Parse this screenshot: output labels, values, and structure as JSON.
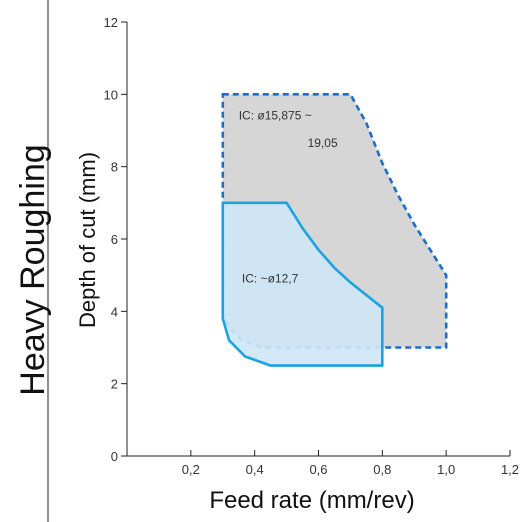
{
  "chart_data": {
    "type": "area",
    "side_title": "Heavy Roughing",
    "xlabel": "Feed rate (mm/rev)",
    "ylabel": "Depth of cut (mm)",
    "xlim": [
      0,
      1.2
    ],
    "ylim": [
      0,
      12
    ],
    "x_ticks": [
      {
        "value": 0.2,
        "label": "0,2"
      },
      {
        "value": 0.4,
        "label": "0,4"
      },
      {
        "value": 0.6,
        "label": "0,6"
      },
      {
        "value": 0.8,
        "label": "0,8"
      },
      {
        "value": 1.0,
        "label": "1,0"
      },
      {
        "value": 1.2,
        "label": "1,2"
      }
    ],
    "y_ticks": [
      {
        "value": 0,
        "label": "0"
      },
      {
        "value": 2,
        "label": "2"
      },
      {
        "value": 4,
        "label": "4"
      },
      {
        "value": 6,
        "label": "6"
      },
      {
        "value": 8,
        "label": "8"
      },
      {
        "value": 10,
        "label": "10"
      },
      {
        "value": 12,
        "label": "12"
      }
    ],
    "grid": false,
    "series": [
      {
        "name": "IC: ø15,875 ~ 19,05",
        "label_lines": [
          "IC: ø15,875 ~",
          "19,05"
        ],
        "style": "dashed",
        "fill_color": "#d6d6d6",
        "line_color": "#1b6fc9",
        "outline": [
          [
            0.3,
            10
          ],
          [
            0.7,
            10
          ],
          [
            0.75,
            9.2
          ],
          [
            0.8,
            8.1
          ],
          [
            0.85,
            7.2
          ],
          [
            0.9,
            6.4
          ],
          [
            0.95,
            5.7
          ],
          [
            1.0,
            5.0
          ],
          [
            1.0,
            3.0
          ],
          [
            0.42,
            3.0
          ],
          [
            0.36,
            3.2
          ],
          [
            0.32,
            3.55
          ],
          [
            0.3,
            3.9
          ]
        ]
      },
      {
        "name": "IC: ~ø12,7",
        "label_lines": [
          "IC: ~ø12,7"
        ],
        "style": "solid",
        "fill_color": "#cfe7f7",
        "line_color": "#1aa3e0",
        "outline": [
          [
            0.3,
            7.0
          ],
          [
            0.5,
            7.0
          ],
          [
            0.55,
            6.3
          ],
          [
            0.6,
            5.7
          ],
          [
            0.65,
            5.2
          ],
          [
            0.7,
            4.8
          ],
          [
            0.75,
            4.45
          ],
          [
            0.8,
            4.1
          ],
          [
            0.8,
            2.5
          ],
          [
            0.45,
            2.5
          ],
          [
            0.37,
            2.75
          ],
          [
            0.32,
            3.2
          ],
          [
            0.3,
            3.8
          ]
        ]
      }
    ]
  }
}
